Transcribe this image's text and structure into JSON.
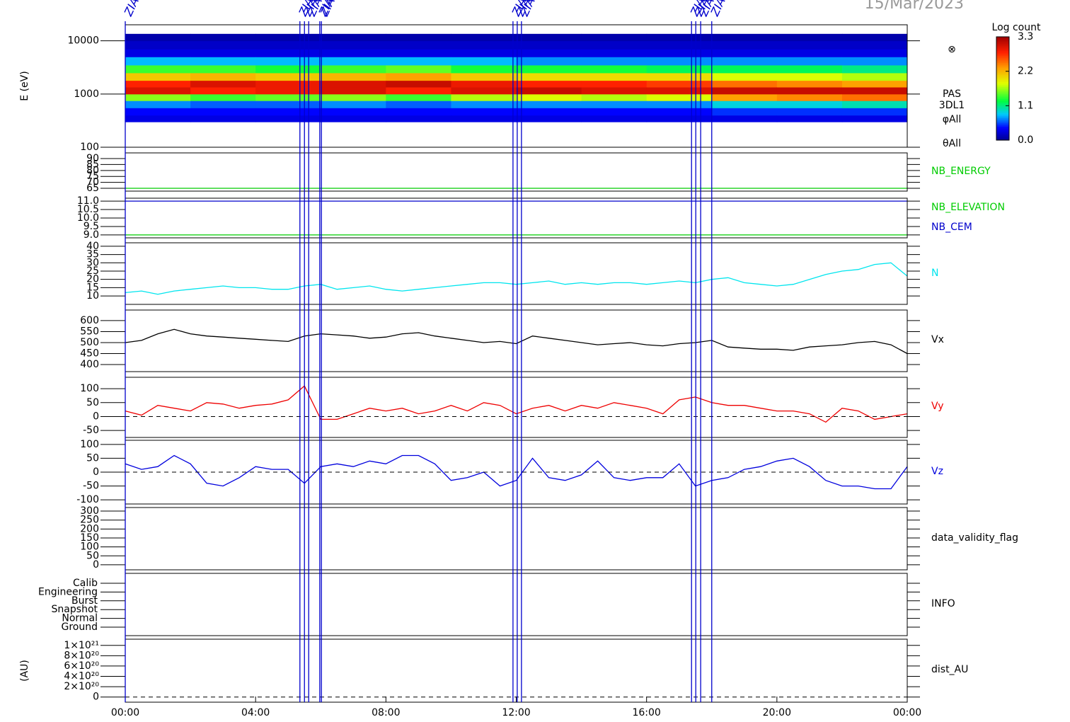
{
  "chart_data": [
    {
      "type": "heatmap",
      "title": "15/Mar/2023",
      "ylabel": "E (eV)",
      "log_scale": true,
      "ylim": [
        100,
        20000
      ],
      "yticks": [
        100,
        1000,
        10000
      ],
      "x_edges": [
        0,
        2,
        4,
        6,
        8,
        10,
        12,
        14,
        16,
        18,
        20,
        22,
        24
      ],
      "y_edges": [
        300,
        400,
        550,
        750,
        1000,
        1350,
        1800,
        2500,
        3500,
        5000,
        7000,
        10000,
        13500
      ],
      "values": [
        [
          0.3,
          0.4,
          0.7,
          1.6,
          3.0,
          2.8,
          2.1,
          1.4,
          0.8,
          0.3,
          0.2,
          0.1
        ],
        [
          0.3,
          0.4,
          0.6,
          1.4,
          2.8,
          3.0,
          2.2,
          1.4,
          0.8,
          0.3,
          0.2,
          0.1
        ],
        [
          0.3,
          0.4,
          0.6,
          1.5,
          2.9,
          2.9,
          2.1,
          1.3,
          0.8,
          0.3,
          0.2,
          0.1
        ],
        [
          0.3,
          0.4,
          0.7,
          1.6,
          3.0,
          3.0,
          2.2,
          1.4,
          0.8,
          0.3,
          0.2,
          0.1
        ],
        [
          0.3,
          0.4,
          0.6,
          1.4,
          2.8,
          3.1,
          2.3,
          1.5,
          0.8,
          0.3,
          0.2,
          0.1
        ],
        [
          0.3,
          0.4,
          0.7,
          1.7,
          3.0,
          2.9,
          2.1,
          1.3,
          0.8,
          0.3,
          0.2,
          0.1
        ],
        [
          0.3,
          0.4,
          0.7,
          1.8,
          3.1,
          2.8,
          2.0,
          1.3,
          0.7,
          0.3,
          0.2,
          0.1
        ],
        [
          0.3,
          0.4,
          0.7,
          1.7,
          3.0,
          2.8,
          2.0,
          1.3,
          0.7,
          0.3,
          0.2,
          0.1
        ],
        [
          0.3,
          0.4,
          0.7,
          1.8,
          3.0,
          2.7,
          2.0,
          1.2,
          0.7,
          0.3,
          0.2,
          0.1
        ],
        [
          0.3,
          0.5,
          0.9,
          2.3,
          3.1,
          2.5,
          1.8,
          1.2,
          0.7,
          0.3,
          0.2,
          0.1
        ],
        [
          0.3,
          0.5,
          0.9,
          2.4,
          3.1,
          2.4,
          1.8,
          1.2,
          0.7,
          0.3,
          0.2,
          0.1
        ],
        [
          0.3,
          0.5,
          1.0,
          2.5,
          3.1,
          2.3,
          1.7,
          1.1,
          0.7,
          0.3,
          0.2,
          0.1
        ]
      ],
      "annotations": [
        "⊗",
        "PAS",
        "3DL1",
        "φAll",
        "θAll"
      ],
      "colorbar": {
        "label": "Log count",
        "lim": [
          0,
          3.3
        ],
        "ticks": [
          {
            "value": 0,
            "label": "0.0"
          },
          1.1,
          2.2,
          3.3
        ]
      }
    },
    {
      "type": "line",
      "ylim": [
        62.6,
        94.8
      ],
      "yticks": [
        65,
        70,
        75,
        80,
        85,
        90
      ],
      "x": [
        0,
        24
      ],
      "series": [
        {
          "name": "NB_ENERGY",
          "color": "#00cc00",
          "values": [
            65,
            65
          ]
        }
      ]
    },
    {
      "type": "line",
      "ylim": [
        8.83,
        11.17
      ],
      "yticks": [
        {
          "value": 9,
          "label": "9.0"
        },
        9.5,
        {
          "value": 10,
          "label": "10.0"
        },
        10.5,
        {
          "value": 11,
          "label": "11.0"
        }
      ],
      "x": [
        0,
        24
      ],
      "series": [
        {
          "name": "NB_ELEVATION",
          "color": "#00cc00",
          "values": [
            9,
            9
          ]
        },
        {
          "name": "NB_CEM",
          "color": "#0000cc",
          "values": [
            11,
            11
          ]
        }
      ]
    },
    {
      "type": "line",
      "ylim": [
        4.9,
        42.1
      ],
      "yticks": [
        10,
        15,
        20,
        25,
        30,
        35,
        40
      ],
      "x": [
        0,
        0.5,
        1,
        1.5,
        2,
        2.5,
        3,
        3.5,
        4,
        4.5,
        5,
        5.5,
        6,
        6.5,
        7,
        7.5,
        8,
        8.5,
        9,
        9.5,
        10,
        10.5,
        11,
        11.5,
        12,
        12.5,
        13,
        13.5,
        14,
        14.5,
        15,
        15.5,
        16,
        16.5,
        17,
        17.5,
        18,
        18.5,
        19,
        19.5,
        20,
        20.5,
        21,
        21.5,
        22,
        22.5,
        23,
        23.5,
        24
      ],
      "series": [
        {
          "name": "N",
          "color": "#00e5ee",
          "values": [
            12,
            13,
            11,
            13,
            14,
            15,
            16,
            15,
            15,
            14,
            14,
            16,
            17,
            14,
            15,
            16,
            14,
            13,
            14,
            15,
            16,
            17,
            18,
            18,
            17,
            18,
            19,
            17,
            18,
            17,
            18,
            18,
            17,
            18,
            19,
            18,
            20,
            21,
            18,
            17,
            16,
            17,
            20,
            23,
            25,
            26,
            29,
            30,
            22
          ]
        }
      ]
    },
    {
      "type": "line",
      "ylim": [
        368,
        648
      ],
      "yticks": [
        400,
        450,
        500,
        550,
        600
      ],
      "x": [
        0,
        0.5,
        1,
        1.5,
        2,
        2.5,
        3,
        3.5,
        4,
        4.5,
        5,
        5.5,
        6,
        6.5,
        7,
        7.5,
        8,
        8.5,
        9,
        9.5,
        10,
        10.5,
        11,
        11.5,
        12,
        12.5,
        13,
        13.5,
        14,
        14.5,
        15,
        15.5,
        16,
        16.5,
        17,
        17.5,
        18,
        18.5,
        19,
        19.5,
        20,
        20.5,
        21,
        21.5,
        22,
        22.5,
        23,
        23.5,
        24
      ],
      "series": [
        {
          "name": "Vx",
          "color": "#000000",
          "values": [
            500,
            510,
            540,
            560,
            540,
            530,
            525,
            520,
            515,
            510,
            505,
            530,
            540,
            535,
            530,
            520,
            525,
            540,
            545,
            530,
            520,
            510,
            500,
            505,
            495,
            530,
            520,
            510,
            500,
            490,
            495,
            500,
            490,
            485,
            495,
            500,
            510,
            480,
            475,
            470,
            470,
            465,
            480,
            485,
            490,
            500,
            505,
            490,
            450
          ]
        }
      ]
    },
    {
      "type": "line",
      "ylim": [
        -75,
        141
      ],
      "yticks": [
        -50,
        0,
        50,
        100
      ],
      "reference_line": 0,
      "x": [
        0,
        0.5,
        1,
        1.5,
        2,
        2.5,
        3,
        3.5,
        4,
        4.5,
        5,
        5.5,
        6,
        6.5,
        7,
        7.5,
        8,
        8.5,
        9,
        9.5,
        10,
        10.5,
        11,
        11.5,
        12,
        12.5,
        13,
        13.5,
        14,
        14.5,
        15,
        15.5,
        16,
        16.5,
        17,
        17.5,
        18,
        18.5,
        19,
        19.5,
        20,
        20.5,
        21,
        21.5,
        22,
        22.5,
        23,
        23.5,
        24
      ],
      "series": [
        {
          "name": "Vy",
          "color": "#ee0000",
          "values": [
            20,
            5,
            40,
            30,
            20,
            50,
            45,
            30,
            40,
            45,
            60,
            110,
            -10,
            -10,
            10,
            30,
            20,
            30,
            10,
            20,
            40,
            20,
            50,
            40,
            10,
            30,
            40,
            20,
            40,
            30,
            50,
            40,
            30,
            10,
            60,
            70,
            50,
            40,
            40,
            30,
            20,
            20,
            10,
            -20,
            30,
            20,
            -10,
            0,
            10
          ]
        }
      ]
    },
    {
      "type": "line",
      "ylim": [
        -115,
        115
      ],
      "yticks": [
        -100,
        -50,
        0,
        50,
        100
      ],
      "reference_line": 0,
      "x": [
        0,
        0.5,
        1,
        1.5,
        2,
        2.5,
        3,
        3.5,
        4,
        4.5,
        5,
        5.5,
        6,
        6.5,
        7,
        7.5,
        8,
        8.5,
        9,
        9.5,
        10,
        10.5,
        11,
        11.5,
        12,
        12.5,
        13,
        13.5,
        14,
        14.5,
        15,
        15.5,
        16,
        16.5,
        17,
        17.5,
        18,
        18.5,
        19,
        19.5,
        20,
        20.5,
        21,
        21.5,
        22,
        22.5,
        23,
        23.5,
        24
      ],
      "series": [
        {
          "name": "Vz",
          "color": "#0000dd",
          "values": [
            30,
            10,
            20,
            60,
            30,
            -40,
            -50,
            -20,
            20,
            10,
            10,
            -40,
            20,
            30,
            20,
            40,
            30,
            60,
            60,
            30,
            -30,
            -20,
            0,
            -50,
            -30,
            50,
            -20,
            -30,
            -10,
            40,
            -20,
            -30,
            -20,
            -20,
            30,
            -50,
            -30,
            -20,
            10,
            20,
            40,
            50,
            20,
            -30,
            -50,
            -50,
            -60,
            -60,
            20
          ]
        }
      ]
    },
    {
      "type": "empty",
      "label": "data_validity_flag",
      "ylim": [
        -28,
        320
      ],
      "yticks": [
        0,
        50,
        100,
        150,
        200,
        250,
        300
      ]
    },
    {
      "type": "categorical",
      "label": "INFO",
      "categories": [
        "Calib",
        "Engineering",
        "Burst",
        "Snapshot",
        "Normal",
        "Ground"
      ]
    },
    {
      "type": "empty",
      "label": "dist_AU",
      "ylabel": "(AU)",
      "ylim": [
        -1e+20,
        1.12e+21
      ],
      "reference_line": 0,
      "yticks": [
        0,
        {
          "value": 2e+20,
          "label": "2×10²⁰"
        },
        {
          "value": 4e+20,
          "label": "4×10²⁰"
        },
        {
          "value": 6e+20,
          "label": "6×10²⁰"
        },
        {
          "value": 8e+20,
          "label": "8×10²⁰"
        },
        {
          "value": 1e+21,
          "label": "1×10²¹"
        }
      ],
      "xlim": [
        0,
        24
      ],
      "xticks": [
        {
          "value": 0,
          "label": "00:00"
        },
        {
          "value": 4,
          "label": "04:00"
        },
        {
          "value": 8,
          "label": "08:00"
        },
        {
          "value": 12,
          "label": "12:00"
        },
        {
          "value": 16,
          "label": "16:00"
        },
        {
          "value": 20,
          "label": "20:00"
        },
        {
          "value": 24,
          "label": "00:00"
        }
      ]
    },
    {
      "type": "event-lines",
      "label": "ZIAS",
      "color": "#0000cc",
      "x": [
        0,
        5.36,
        5.5,
        5.63,
        5.97,
        6.02,
        11.9,
        12.03,
        12.16,
        17.38,
        17.51,
        17.66,
        18.0
      ]
    }
  ]
}
